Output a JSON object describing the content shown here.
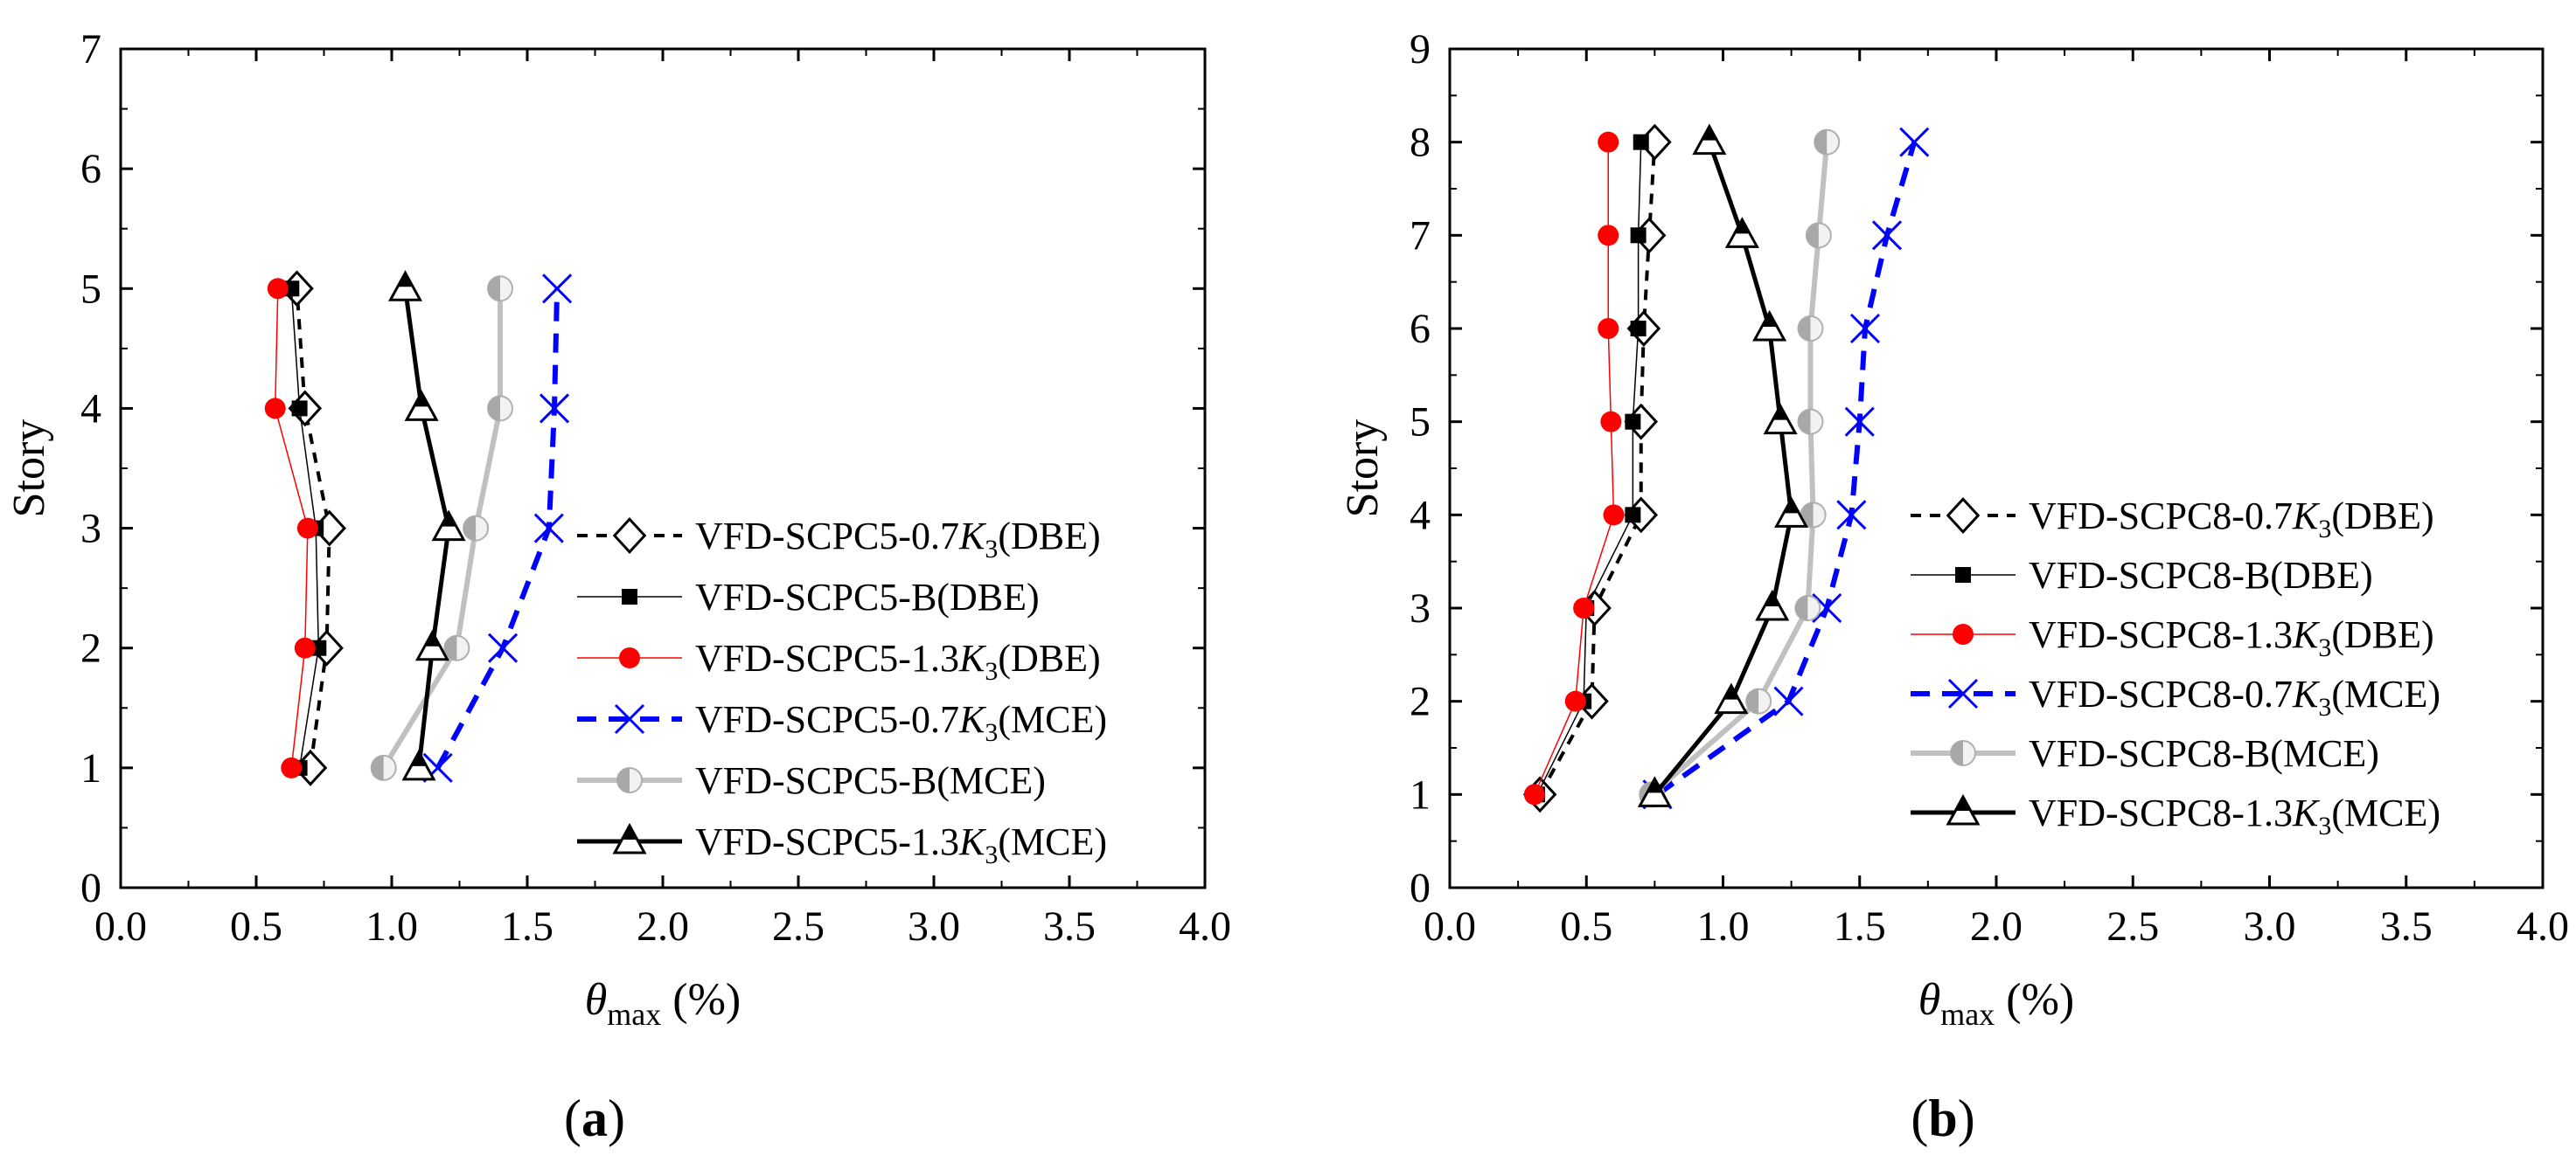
{
  "chart_data": [
    {
      "type": "line",
      "panel_label": "(a)",
      "panel_letter": "a",
      "xlabel": "θmax (%)",
      "xlabel_main": "θ",
      "xlabel_sub": "max",
      "xlabel_unit": " (%)",
      "ylabel": "Story",
      "xlim": [
        0.0,
        4.0
      ],
      "ylim": [
        0,
        7
      ],
      "xticks": [
        "0.0",
        "0.5",
        "1.0",
        "1.5",
        "2.0",
        "2.5",
        "3.0",
        "3.5",
        "4.0"
      ],
      "yticks": [
        "0",
        "1",
        "2",
        "3",
        "4",
        "5",
        "6",
        "7"
      ],
      "series": [
        {
          "name": "VFD-SCPC5-0.7K3(DBE)",
          "label_pre": "VFD-SCPC5-0.7",
          "label_k": "K",
          "label_sub": "3",
          "label_post": "(DBE)",
          "x": [
            0.7,
            0.76,
            0.77,
            0.68,
            0.65
          ],
          "y": [
            1,
            2,
            3,
            4,
            5
          ],
          "color": "#000000",
          "marker": "diamond-open",
          "dash": "12,10",
          "width": 4
        },
        {
          "name": "VFD-SCPC5-B(DBE)",
          "label_pre": "VFD-SCPC5-B(DBE)",
          "label_k": "",
          "label_sub": "",
          "label_post": "",
          "x": [
            0.66,
            0.73,
            0.72,
            0.66,
            0.63
          ],
          "y": [
            1,
            2,
            3,
            4,
            5
          ],
          "color": "#000000",
          "marker": "square",
          "dash": "",
          "width": 1.5
        },
        {
          "name": "VFD-SCPC5-1.3K3(DBE)",
          "label_pre": "VFD-SCPC5-1.3",
          "label_k": "K",
          "label_sub": "3",
          "label_post": "(DBE)",
          "x": [
            0.63,
            0.68,
            0.69,
            0.57,
            0.58
          ],
          "y": [
            1,
            2,
            3,
            4,
            5
          ],
          "color": "#ff0000",
          "marker": "circle",
          "dash": "",
          "width": 1.5
        },
        {
          "name": "VFD-SCPC5-0.7K3(MCE)",
          "label_pre": "VFD-SCPC5-0.7",
          "label_k": "K",
          "label_sub": "3",
          "label_post": "(MCE)",
          "x": [
            1.17,
            1.41,
            1.58,
            1.6,
            1.61
          ],
          "y": [
            1,
            2,
            3,
            4,
            5
          ],
          "color": "#0000ff",
          "marker": "x",
          "dash": "22,14",
          "width": 6
        },
        {
          "name": "VFD-SCPC5-B(MCE)",
          "label_pre": "VFD-SCPC5-B(MCE)",
          "label_k": "",
          "label_sub": "",
          "label_post": "",
          "x": [
            0.97,
            1.24,
            1.31,
            1.4,
            1.4
          ],
          "y": [
            1,
            2,
            3,
            4,
            5
          ],
          "color": "#c0c0c0",
          "marker": "half-circle",
          "dash": "",
          "width": 6
        },
        {
          "name": "VFD-SCPC5-1.3K3(MCE)",
          "label_pre": "VFD-SCPC5-1.3",
          "label_k": "K",
          "label_sub": "3",
          "label_post": "(MCE)",
          "x": [
            1.1,
            1.15,
            1.21,
            1.11,
            1.05
          ],
          "y": [
            1,
            2,
            3,
            4,
            5
          ],
          "color": "#000000",
          "marker": "triangle-half",
          "dash": "",
          "width": 5
        }
      ]
    },
    {
      "type": "line",
      "panel_label": "(b)",
      "panel_letter": "b",
      "xlabel": "θmax (%)",
      "xlabel_main": "θ",
      "xlabel_sub": "max",
      "xlabel_unit": " (%)",
      "ylabel": "Story",
      "xlim": [
        0.0,
        4.0
      ],
      "ylim": [
        0,
        9
      ],
      "xticks": [
        "0.0",
        "0.5",
        "1.0",
        "1.5",
        "2.0",
        "2.5",
        "3.0",
        "3.5",
        "4.0"
      ],
      "yticks": [
        "0",
        "1",
        "2",
        "3",
        "4",
        "5",
        "6",
        "7",
        "8",
        "9"
      ],
      "series": [
        {
          "name": "VFD-SCPC8-0.7K3(DBE)",
          "label_pre": "VFD-SCPC8-0.7",
          "label_k": "K",
          "label_sub": "3",
          "label_post": "(DBE)",
          "x": [
            0.33,
            0.52,
            0.53,
            0.7,
            0.7,
            0.71,
            0.73,
            0.75
          ],
          "y": [
            1,
            2,
            3,
            4,
            5,
            6,
            7,
            8
          ],
          "color": "#000000",
          "marker": "diamond-open",
          "dash": "12,10",
          "width": 4
        },
        {
          "name": "VFD-SCPC8-B(DBE)",
          "label_pre": "VFD-SCPC8-B(DBE)",
          "label_k": "",
          "label_sub": "",
          "label_post": "",
          "x": [
            0.32,
            0.49,
            0.5,
            0.67,
            0.67,
            0.69,
            0.69,
            0.7
          ],
          "y": [
            1,
            2,
            3,
            4,
            5,
            6,
            7,
            8
          ],
          "color": "#000000",
          "marker": "square",
          "dash": "",
          "width": 1.5
        },
        {
          "name": "VFD-SCPC8-1.3K3(DBE)",
          "label_pre": "VFD-SCPC8-1.3",
          "label_k": "K",
          "label_sub": "3",
          "label_post": "(DBE)",
          "x": [
            0.31,
            0.46,
            0.49,
            0.6,
            0.59,
            0.58,
            0.58,
            0.58
          ],
          "y": [
            1,
            2,
            3,
            4,
            5,
            6,
            7,
            8
          ],
          "color": "#ff0000",
          "marker": "circle",
          "dash": "",
          "width": 1.5
        },
        {
          "name": "VFD-SCPC8-0.7K3(MCE)",
          "label_pre": "VFD-SCPC8-0.7",
          "label_k": "K",
          "label_sub": "3",
          "label_post": "(MCE)",
          "x": [
            0.76,
            1.24,
            1.38,
            1.47,
            1.5,
            1.52,
            1.6,
            1.7
          ],
          "y": [
            1,
            2,
            3,
            4,
            5,
            6,
            7,
            8
          ],
          "color": "#0000ff",
          "marker": "x",
          "dash": "22,14",
          "width": 6
        },
        {
          "name": "VFD-SCPC8-B(MCE)",
          "label_pre": "VFD-SCPC8-B(MCE)",
          "label_k": "",
          "label_sub": "",
          "label_post": "",
          "x": [
            0.74,
            1.13,
            1.31,
            1.33,
            1.32,
            1.32,
            1.35,
            1.38
          ],
          "y": [
            1,
            2,
            3,
            4,
            5,
            6,
            7,
            8
          ],
          "color": "#c0c0c0",
          "marker": "half-circle",
          "dash": "",
          "width": 6
        },
        {
          "name": "VFD-SCPC8-1.3K3(MCE)",
          "label_pre": "VFD-SCPC8-1.3",
          "label_k": "K",
          "label_sub": "3",
          "label_post": "(MCE)",
          "x": [
            0.75,
            1.03,
            1.18,
            1.25,
            1.21,
            1.17,
            1.07,
            0.95
          ],
          "y": [
            1,
            2,
            3,
            4,
            5,
            6,
            7,
            8
          ],
          "color": "#000000",
          "marker": "triangle-half",
          "dash": "",
          "width": 5
        }
      ]
    }
  ]
}
